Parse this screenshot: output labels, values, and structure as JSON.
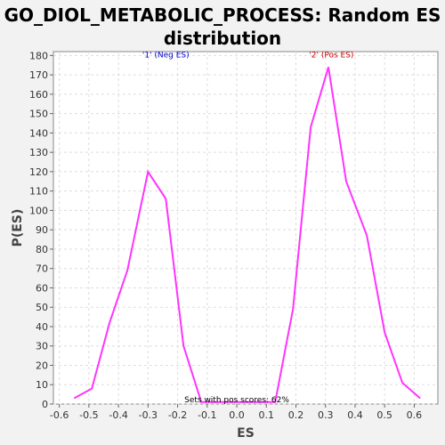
{
  "chart_data": {
    "type": "line",
    "title_line1": "GO_DIOL_METABOLIC_PROCESS: Random ES",
    "title_line2": "distribution",
    "xlabel": "ES",
    "ylabel": "P(ES)",
    "xlim": [
      -0.62,
      0.68
    ],
    "ylim": [
      0,
      182
    ],
    "x_ticks": [
      -0.6,
      -0.5,
      -0.4,
      -0.3,
      -0.2,
      -0.1,
      0.0,
      0.1,
      0.2,
      0.3,
      0.4,
      0.5,
      0.6
    ],
    "x_tick_labels": [
      "-0.6",
      "-0.5",
      "-0.4",
      "-0.3",
      "-0.2",
      "-0.1",
      "0.0",
      "0.1",
      "0.2",
      "0.3",
      "0.4",
      "0.5",
      "0.6"
    ],
    "y_ticks": [
      0,
      10,
      20,
      30,
      40,
      50,
      60,
      70,
      80,
      90,
      100,
      110,
      120,
      130,
      140,
      150,
      160,
      170,
      180
    ],
    "grid": true,
    "series": [
      {
        "color": "#ff33ff",
        "x": [
          -0.55,
          -0.49,
          -0.43,
          -0.37,
          -0.3,
          -0.24,
          -0.18,
          -0.12,
          -0.06,
          0.0,
          0.06,
          0.13,
          0.19,
          0.25,
          0.31,
          0.37,
          0.44,
          0.5,
          0.56,
          0.62
        ],
        "y": [
          3,
          8,
          42,
          69,
          120,
          106,
          30,
          1,
          1,
          1,
          1,
          1,
          49,
          143,
          174,
          115,
          87,
          37,
          11,
          3
        ]
      }
    ],
    "annotations": [
      {
        "text": "'1' (Neg ES)",
        "x": -0.24,
        "y": 179,
        "color": "#0000cc"
      },
      {
        "text": "'2' (Pos ES)",
        "x": 0.32,
        "y": 179,
        "color": "#cc0000"
      },
      {
        "text": "Sets with pos scores: 62%",
        "x": 0.0,
        "y": 1,
        "color": "#000000"
      }
    ]
  }
}
